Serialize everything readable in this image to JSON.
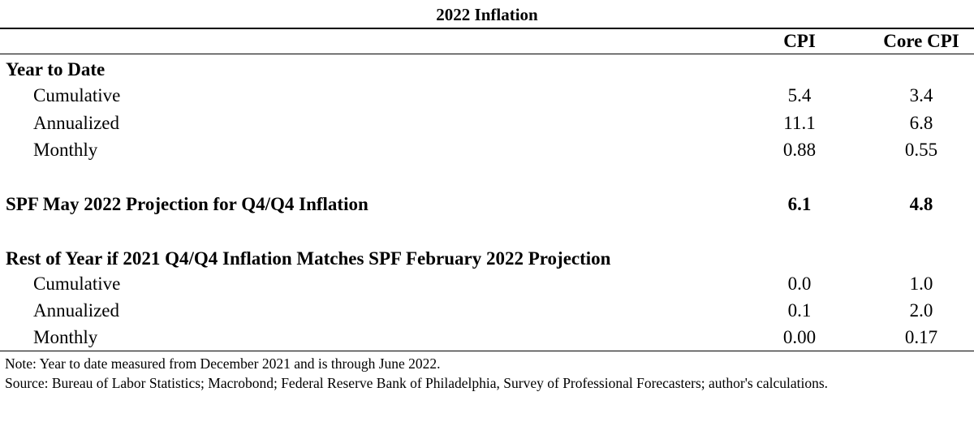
{
  "title": "2022 Inflation",
  "columns": {
    "cpi": "CPI",
    "core_cpi": "Core CPI"
  },
  "sections": [
    {
      "heading": "Year to Date",
      "rows": [
        {
          "label": "Cumulative",
          "cpi": "5.4",
          "core_cpi": "3.4"
        },
        {
          "label": "Annualized",
          "cpi": "11.1",
          "core_cpi": "6.8"
        },
        {
          "label": "Monthly",
          "cpi": "0.88",
          "core_cpi": "0.55"
        }
      ]
    },
    {
      "heading": "SPF May 2022 Projection for Q4/Q4 Inflation",
      "cpi": "6.1",
      "core_cpi": "4.8"
    },
    {
      "heading": "Rest of Year if 2021 Q4/Q4 Inflation Matches SPF February 2022 Projection",
      "rows": [
        {
          "label": "Cumulative",
          "cpi": "0.0",
          "core_cpi": "1.0"
        },
        {
          "label": "Annualized",
          "cpi": "0.1",
          "core_cpi": "2.0"
        },
        {
          "label": "Monthly",
          "cpi": "0.00",
          "core_cpi": "0.17"
        }
      ]
    }
  ],
  "notes": {
    "note": "Note: Year to date measured from December 2021 and is through June 2022.",
    "source": "Source: Bureau of Labor Statistics; Macrobond; Federal Reserve Bank of Philadelphia, Survey of Professional Forecasters; author's calculations."
  }
}
